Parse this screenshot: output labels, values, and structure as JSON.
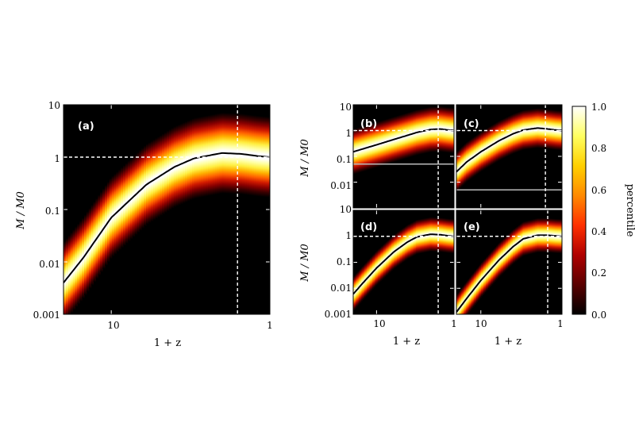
{
  "chart_data": [
    {
      "type": "heatmap",
      "panel_label": "(a)",
      "xlabel": "1 + z",
      "ylabel": "M / M0",
      "x_ticks": [
        "10",
        "1"
      ],
      "y_ticks": [
        "10",
        "1",
        "0.1",
        "0.01",
        "0.001"
      ],
      "xlim": [
        20,
        1
      ],
      "ylim": [
        0.001,
        10
      ],
      "x_scale": "log",
      "y_scale": "log",
      "median_track": {
        "x": [
          20,
          15,
          10,
          6,
          4,
          3,
          2,
          1.5,
          1.2,
          1
        ],
        "y": [
          0.004,
          0.012,
          0.07,
          0.3,
          0.65,
          0.95,
          1.2,
          1.15,
          1.05,
          1.0
        ]
      },
      "hline_y": 1,
      "vline_x": 1.6,
      "band_width_dex": 0.35
    },
    {
      "type": "heatmap",
      "panel_label": "(b)",
      "ylabel": "M / M0",
      "y_ticks": [
        "10",
        "1",
        "0.1",
        "0.01"
      ],
      "xlim": [
        20,
        1
      ],
      "ylim": [
        0.001,
        10
      ],
      "x_scale": "log",
      "y_scale": "log",
      "median_track": {
        "x": [
          20,
          10,
          6,
          4,
          3,
          2,
          1.5,
          1.2,
          1
        ],
        "y": [
          0.15,
          0.28,
          0.45,
          0.65,
          0.85,
          1.1,
          1.15,
          1.05,
          1.0
        ]
      },
      "hline_y": 1,
      "vline_x": 1.6,
      "limit_line_y": 0.05,
      "band_width_dex": 0.4
    },
    {
      "type": "heatmap",
      "panel_label": "(c)",
      "xlim": [
        20,
        1
      ],
      "ylim": [
        0.001,
        10
      ],
      "x_scale": "log",
      "y_scale": "log",
      "median_track": {
        "x": [
          20,
          15,
          10,
          6,
          4,
          3,
          2,
          1.5,
          1.2,
          1
        ],
        "y": [
          0.025,
          0.06,
          0.15,
          0.4,
          0.75,
          1.05,
          1.25,
          1.15,
          1.05,
          1.0
        ]
      },
      "hline_y": 1,
      "vline_x": 1.6,
      "limit_line_y": 0.005,
      "band_width_dex": 0.35
    },
    {
      "type": "heatmap",
      "panel_label": "(d)",
      "xlabel": "1 + z",
      "ylabel": "M / M0",
      "x_ticks": [
        "10",
        "1"
      ],
      "y_ticks": [
        "10",
        "1",
        "0.1",
        "0.01",
        "0.001"
      ],
      "xlim": [
        20,
        1
      ],
      "ylim": [
        0.001,
        10
      ],
      "x_scale": "log",
      "y_scale": "log",
      "median_track": {
        "x": [
          20,
          15,
          10,
          6,
          4,
          3,
          2,
          1.5,
          1.2,
          1
        ],
        "y": [
          0.006,
          0.016,
          0.06,
          0.25,
          0.6,
          0.95,
          1.2,
          1.15,
          1.05,
          1.0
        ]
      },
      "hline_y": 1,
      "vline_x": 1.6,
      "band_width_dex": 0.3
    },
    {
      "type": "heatmap",
      "panel_label": "(e)",
      "xlabel": "1 + z",
      "x_ticks": [
        "10",
        "1"
      ],
      "xlim": [
        20,
        1
      ],
      "ylim": [
        0.001,
        10
      ],
      "x_scale": "log",
      "y_scale": "log",
      "median_track": {
        "x": [
          20,
          15,
          10,
          6,
          4,
          3,
          2,
          1.5,
          1.2,
          1
        ],
        "y": [
          0.0012,
          0.004,
          0.02,
          0.12,
          0.4,
          0.8,
          1.1,
          1.1,
          1.03,
          1.0
        ]
      },
      "hline_y": 1,
      "vline_x": 1.5,
      "band_width_dex": 0.3
    }
  ],
  "colorbar": {
    "label": "percentile",
    "ticks": [
      "1.0",
      "0.8",
      "0.6",
      "0.4",
      "0.2",
      "0.0"
    ],
    "range": [
      0,
      1
    ],
    "colors": [
      "#000000",
      "#3a0000",
      "#8a0000",
      "#d01a00",
      "#ff6000",
      "#ffb000",
      "#ffee40",
      "#ffffa0",
      "#ffffff",
      "#ffffff",
      "#ffffa0",
      "#ffee40",
      "#ffb000",
      "#ff6000",
      "#d01a00",
      "#8a0000",
      "#3a0000",
      "#000000"
    ]
  }
}
